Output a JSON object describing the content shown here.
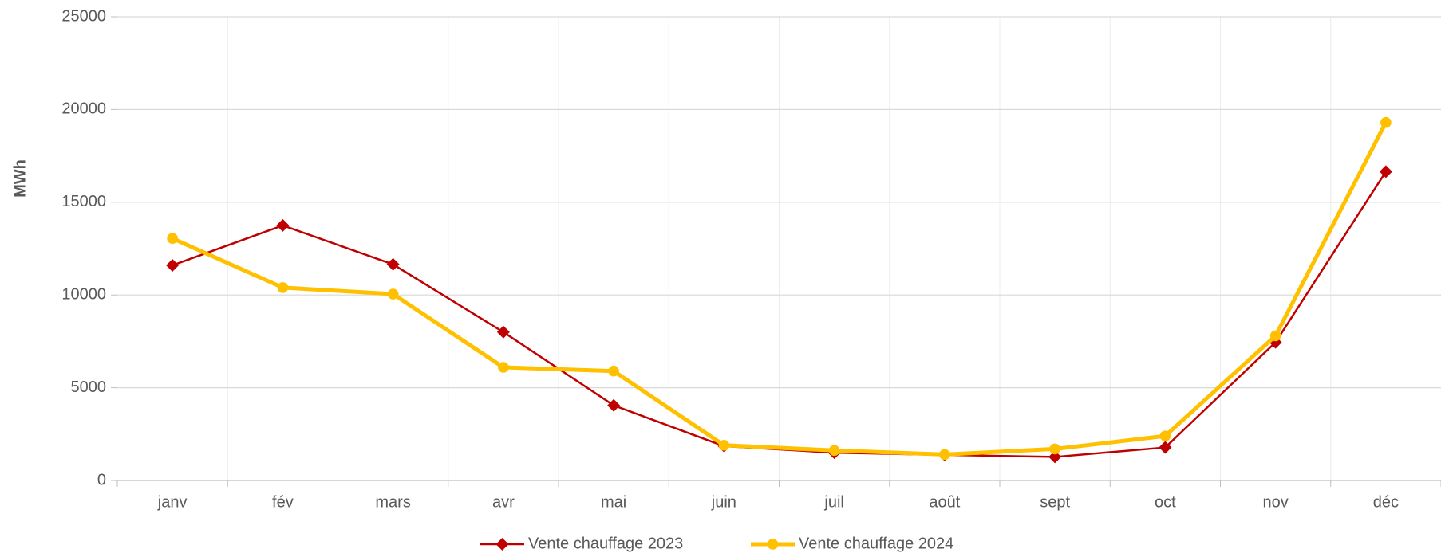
{
  "chart_data": {
    "type": "line",
    "y_label": "MWh",
    "categories": [
      "janv",
      "fév",
      "mars",
      "avr",
      "mai",
      "juin",
      "juil",
      "août",
      "sept",
      "oct",
      "nov",
      "déc"
    ],
    "series": [
      {
        "name": "Vente chauffage 2023",
        "color": "#c00000",
        "marker": "diamond",
        "values": [
          11600,
          13750,
          11650,
          8000,
          4050,
          1850,
          1500,
          1380,
          1270,
          1780,
          7450,
          16650
        ]
      },
      {
        "name": "Vente chauffage 2024",
        "color": "#ffc000",
        "marker": "circle",
        "values": [
          13050,
          10400,
          10050,
          6100,
          5900,
          1900,
          1620,
          1400,
          1700,
          2400,
          7800,
          19300
        ]
      }
    ],
    "ylim": [
      0,
      25000
    ],
    "yticks": [
      0,
      5000,
      10000,
      15000,
      20000,
      25000
    ],
    "grid": true,
    "legend": "bottom"
  }
}
